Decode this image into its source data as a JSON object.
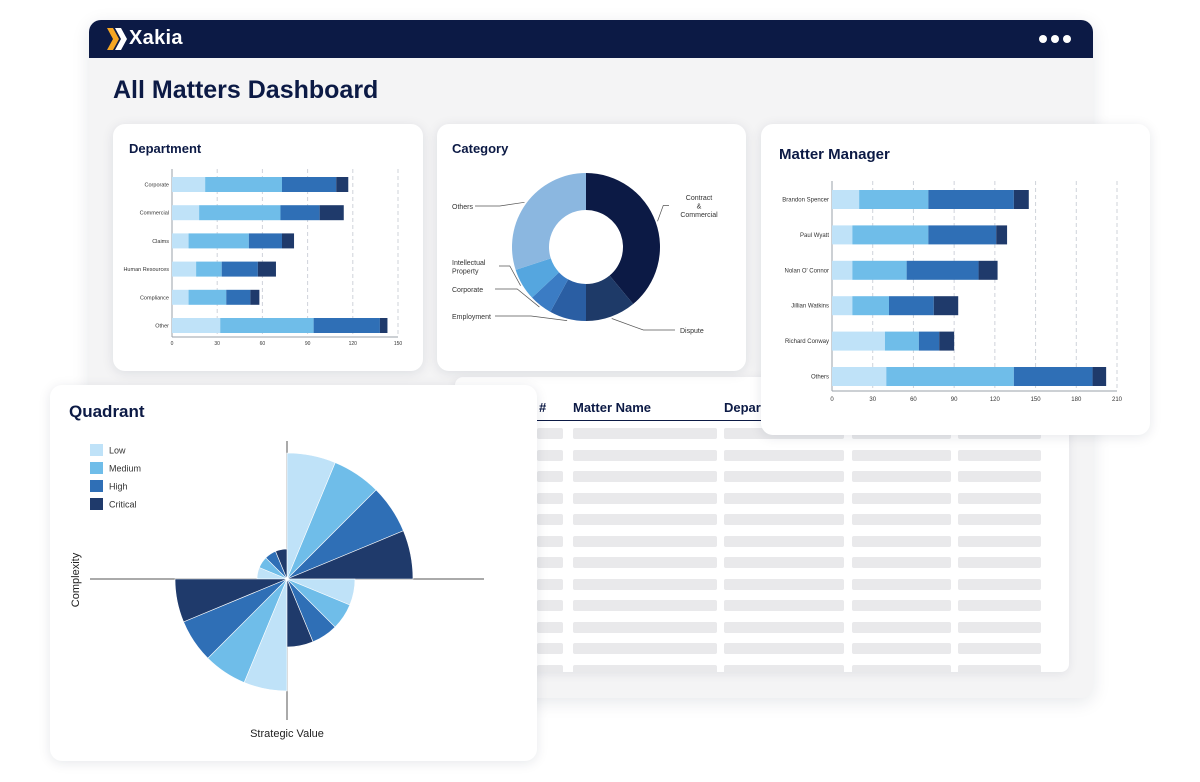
{
  "brand": {
    "name": "Xakia"
  },
  "header": {
    "title": "All Matters Dashboard"
  },
  "colors": {
    "navy": "#0c1a45",
    "low": "#bfe2f8",
    "medium": "#6fbde9",
    "high": "#2f6fb6",
    "critical": "#1f3a6b",
    "donut_others": "#8bb7e0",
    "donut_ip": "#55a6df",
    "donut_corporate": "#3b7cc4",
    "donut_employment": "#2a5ea3",
    "donut_dispute": "#1e3a68",
    "donut_contract": "#0c1a45"
  },
  "table": {
    "columns": [
      "#",
      "Matter Name",
      "Depar"
    ],
    "row_count": 12
  },
  "chart_data": [
    {
      "id": "department",
      "type": "bar",
      "orientation": "horizontal",
      "stacked": true,
      "title": "Department",
      "categories": [
        "Corporate",
        "Commercial",
        "Claims",
        "Human Resources",
        "Compliance",
        "Other"
      ],
      "series": [
        {
          "name": "Low",
          "values": [
            22,
            18,
            11,
            16,
            11,
            32
          ]
        },
        {
          "name": "Medium",
          "values": [
            51,
            54,
            40,
            17,
            25,
            62
          ]
        },
        {
          "name": "High",
          "values": [
            36,
            26,
            22,
            24,
            16,
            44
          ]
        },
        {
          "name": "Critical",
          "values": [
            8,
            16,
            8,
            12,
            6,
            5
          ]
        }
      ],
      "xticks": [
        "0",
        "30",
        "60",
        "90",
        "120",
        "150"
      ],
      "xlim": [
        0,
        150
      ],
      "grid": true
    },
    {
      "id": "category",
      "type": "pie",
      "donut": true,
      "title": "Category",
      "labels": [
        "Contract & Commercial",
        "Dispute",
        "Employment",
        "Corporate",
        "Intellectual Property",
        "Others"
      ],
      "values": [
        39,
        11,
        8,
        5,
        7,
        30
      ]
    },
    {
      "id": "matter-manager",
      "type": "bar",
      "orientation": "horizontal",
      "stacked": true,
      "title": "Matter Manager",
      "categories": [
        "Brandon Spencer",
        "Paul Wyatt",
        "Nolan O' Connor",
        "Jillian Watkins",
        "Richard Conway",
        "Others"
      ],
      "series": [
        {
          "name": "Low",
          "values": [
            20,
            15,
            15,
            15,
            39,
            40
          ]
        },
        {
          "name": "Medium",
          "values": [
            51,
            56,
            40,
            27,
            25,
            94
          ]
        },
        {
          "name": "High",
          "values": [
            63,
            50,
            53,
            33,
            15,
            58
          ]
        },
        {
          "name": "Critical",
          "values": [
            11,
            8,
            14,
            18,
            11,
            10
          ]
        }
      ],
      "xticks": [
        "0",
        "30",
        "60",
        "90",
        "120",
        "150",
        "180",
        "210"
      ],
      "xlim": [
        0,
        210
      ],
      "grid": true
    },
    {
      "id": "quadrant",
      "type": "polar",
      "title": "Quadrant",
      "xlabel": "Strategic Value",
      "ylabel": "Complexity",
      "legend": [
        "Low",
        "Medium",
        "High",
        "Critical"
      ],
      "legend_position": "top-left",
      "quadrants": [
        {
          "quadrant": "top-right",
          "radii": {
            "Low": 126,
            "Medium": 126,
            "High": 126,
            "Critical": 126
          }
        },
        {
          "quadrant": "top-left",
          "radii": {
            "Low": 30,
            "Medium": 30,
            "High": 30,
            "Critical": 30
          }
        },
        {
          "quadrant": "bottom-left",
          "radii": {
            "Low": 112,
            "Medium": 112,
            "High": 112,
            "Critical": 112
          }
        },
        {
          "quadrant": "bottom-right",
          "radii": {
            "Low": 68,
            "Medium": 68,
            "High": 68,
            "Critical": 68
          }
        }
      ]
    }
  ]
}
